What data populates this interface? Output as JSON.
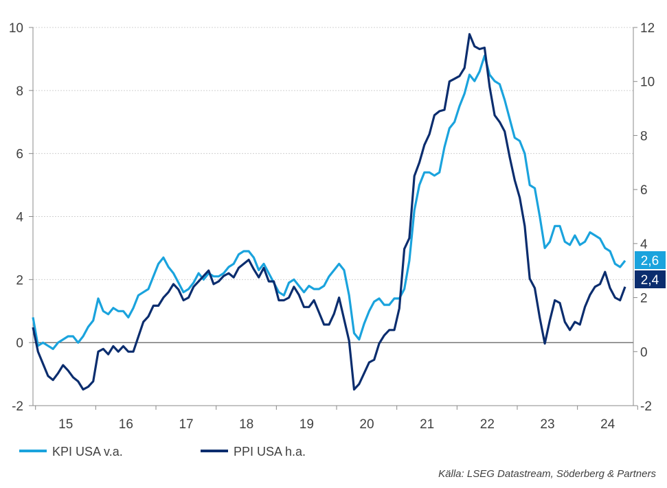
{
  "chart_data": {
    "type": "line",
    "title": "",
    "x_start": "2014-12",
    "x_frequency": "monthly",
    "x_tick_labels": [
      "15",
      "16",
      "17",
      "18",
      "19",
      "20",
      "21",
      "22",
      "23",
      "24"
    ],
    "y_left": {
      "ticks": [
        "-2",
        "0",
        "2",
        "4",
        "6",
        "8",
        "10"
      ],
      "ylim": [
        -2,
        10
      ]
    },
    "y_right": {
      "ticks": [
        "-2",
        "0",
        "2",
        "4",
        "6",
        "8",
        "10",
        "12"
      ],
      "ylim": [
        -2,
        12
      ]
    },
    "grid": true,
    "legend_position": "bottom-left",
    "series": [
      {
        "name": "KPI USA v.a.",
        "axis": "left",
        "color": "#1aa3dd",
        "last_label": "2,6",
        "values": [
          0.8,
          -0.1,
          0.0,
          -0.1,
          -0.2,
          0.0,
          0.1,
          0.2,
          0.2,
          0.0,
          0.2,
          0.5,
          0.7,
          1.4,
          1.0,
          0.9,
          1.1,
          1.0,
          1.0,
          0.8,
          1.1,
          1.5,
          1.6,
          1.7,
          2.1,
          2.5,
          2.7,
          2.4,
          2.2,
          1.9,
          1.6,
          1.7,
          1.9,
          2.2,
          2.0,
          2.2,
          2.1,
          2.1,
          2.2,
          2.4,
          2.5,
          2.8,
          2.9,
          2.9,
          2.7,
          2.3,
          2.5,
          2.2,
          1.9,
          1.6,
          1.5,
          1.9,
          2.0,
          1.8,
          1.6,
          1.8,
          1.7,
          1.7,
          1.8,
          2.1,
          2.3,
          2.5,
          2.3,
          1.5,
          0.3,
          0.1,
          0.6,
          1.0,
          1.3,
          1.4,
          1.2,
          1.2,
          1.4,
          1.4,
          1.7,
          2.6,
          4.2,
          5.0,
          5.4,
          5.4,
          5.3,
          5.4,
          6.2,
          6.8,
          7.0,
          7.5,
          7.9,
          8.5,
          8.3,
          8.6,
          9.1,
          8.5,
          8.3,
          8.2,
          7.7,
          7.1,
          6.5,
          6.4,
          6.0,
          5.0,
          4.9,
          4.0,
          3.0,
          3.2,
          3.7,
          3.7,
          3.2,
          3.1,
          3.4,
          3.1,
          3.2,
          3.5,
          3.4,
          3.3,
          3.0,
          2.9,
          2.5,
          2.4,
          2.6
        ]
      },
      {
        "name": "PPI USA h.a.",
        "axis": "right",
        "color": "#0b2d6e",
        "last_label": "2,4",
        "values": [
          0.9,
          0.0,
          -0.45,
          -0.9,
          -1.05,
          -0.8,
          -0.5,
          -0.7,
          -0.95,
          -1.1,
          -1.4,
          -1.3,
          -1.1,
          0.0,
          0.1,
          -0.1,
          0.2,
          0.0,
          0.2,
          0.0,
          0.0,
          0.55,
          1.1,
          1.3,
          1.7,
          1.7,
          2.0,
          2.2,
          2.5,
          2.3,
          1.9,
          2.0,
          2.4,
          2.6,
          2.8,
          3.0,
          2.5,
          2.6,
          2.8,
          2.9,
          2.75,
          3.1,
          3.25,
          3.4,
          3.05,
          2.75,
          3.1,
          2.6,
          2.6,
          1.9,
          1.9,
          2.0,
          2.4,
          2.1,
          1.65,
          1.65,
          1.9,
          1.45,
          1.0,
          1.0,
          1.4,
          2.0,
          1.2,
          0.4,
          -1.4,
          -1.2,
          -0.8,
          -0.4,
          -0.3,
          0.3,
          0.6,
          0.8,
          0.8,
          1.6,
          3.8,
          4.2,
          6.5,
          7.0,
          7.65,
          8.05,
          8.75,
          8.9,
          8.95,
          10.0,
          10.1,
          10.2,
          10.5,
          11.75,
          11.3,
          11.2,
          11.25,
          9.8,
          8.75,
          8.5,
          8.15,
          7.2,
          6.35,
          5.7,
          4.65,
          2.7,
          2.35,
          1.25,
          0.3,
          1.15,
          1.9,
          1.8,
          1.1,
          0.8,
          1.1,
          1.0,
          1.65,
          2.1,
          2.4,
          2.5,
          2.95,
          2.35,
          2.0,
          1.9,
          2.4
        ]
      }
    ]
  },
  "source": "Källa: LSEG Datastream, Söderberg & Partners"
}
